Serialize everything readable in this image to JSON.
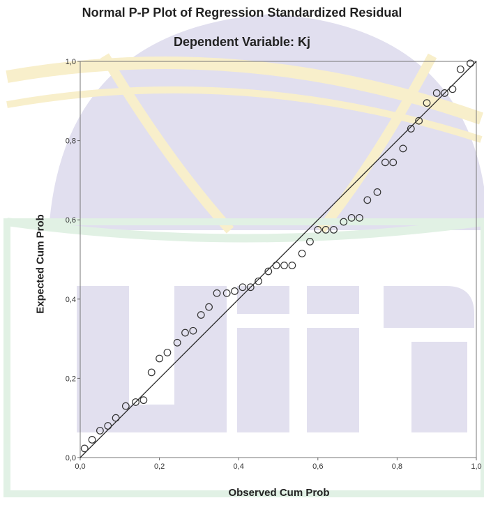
{
  "chart_data": {
    "type": "scatter",
    "title": "Normal P-P Plot of Regression Standardized Residual",
    "subtitle": "Dependent Variable: Kj",
    "xlabel": "Observed Cum Prob",
    "ylabel": "Expected Cum Prob",
    "xlim": [
      0,
      1
    ],
    "ylim": [
      0,
      1
    ],
    "xticks": [
      "0,0",
      "0,2",
      "0,4",
      "0,6",
      "0,8",
      "1,0"
    ],
    "yticks": [
      "0,0",
      "0,2",
      "0,4",
      "0,6",
      "0,8",
      "1,0"
    ],
    "reference_line": [
      [
        0,
        0
      ],
      [
        1,
        1
      ]
    ],
    "points": [
      [
        0.011,
        0.023
      ],
      [
        0.03,
        0.045
      ],
      [
        0.05,
        0.068
      ],
      [
        0.07,
        0.08
      ],
      [
        0.09,
        0.1
      ],
      [
        0.115,
        0.13
      ],
      [
        0.14,
        0.14
      ],
      [
        0.16,
        0.145
      ],
      [
        0.18,
        0.215
      ],
      [
        0.2,
        0.25
      ],
      [
        0.22,
        0.265
      ],
      [
        0.245,
        0.29
      ],
      [
        0.265,
        0.315
      ],
      [
        0.285,
        0.32
      ],
      [
        0.305,
        0.36
      ],
      [
        0.325,
        0.38
      ],
      [
        0.345,
        0.415
      ],
      [
        0.37,
        0.415
      ],
      [
        0.39,
        0.42
      ],
      [
        0.41,
        0.43
      ],
      [
        0.43,
        0.43
      ],
      [
        0.45,
        0.445
      ],
      [
        0.475,
        0.47
      ],
      [
        0.495,
        0.485
      ],
      [
        0.515,
        0.485
      ],
      [
        0.535,
        0.485
      ],
      [
        0.56,
        0.515
      ],
      [
        0.58,
        0.545
      ],
      [
        0.6,
        0.575
      ],
      [
        0.62,
        0.575
      ],
      [
        0.64,
        0.575
      ],
      [
        0.665,
        0.595
      ],
      [
        0.685,
        0.605
      ],
      [
        0.705,
        0.605
      ],
      [
        0.725,
        0.65
      ],
      [
        0.75,
        0.67
      ],
      [
        0.77,
        0.745
      ],
      [
        0.79,
        0.745
      ],
      [
        0.815,
        0.78
      ],
      [
        0.835,
        0.83
      ],
      [
        0.855,
        0.85
      ],
      [
        0.875,
        0.895
      ],
      [
        0.9,
        0.92
      ],
      [
        0.92,
        0.92
      ],
      [
        0.94,
        0.93
      ],
      [
        0.96,
        0.98
      ],
      [
        0.985,
        0.995
      ]
    ],
    "marker_color": "#333333",
    "line_color": "#222222",
    "grid": false
  }
}
